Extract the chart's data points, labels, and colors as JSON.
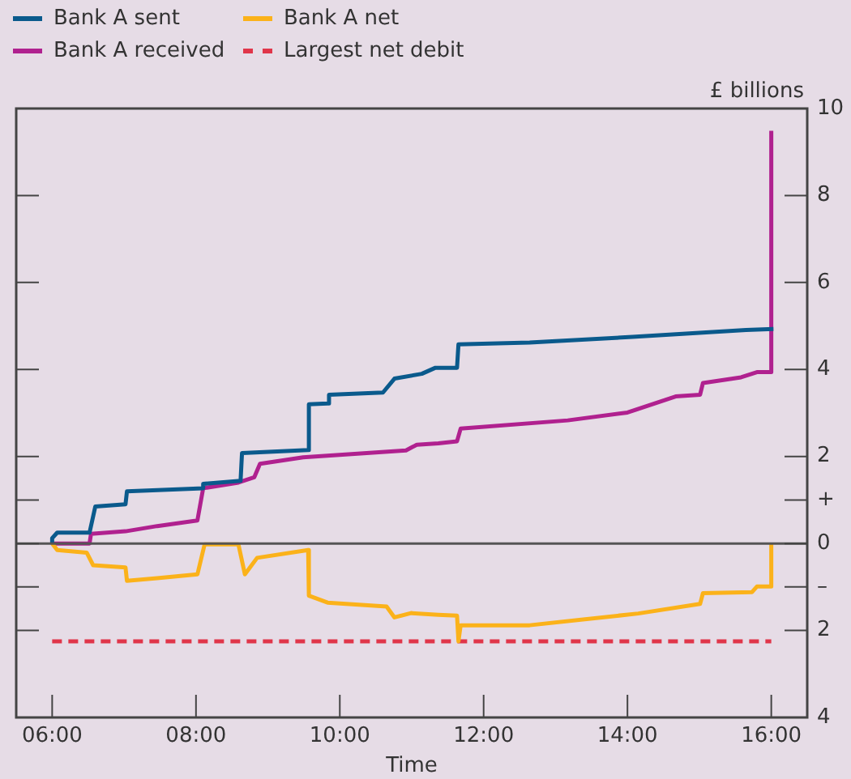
{
  "chart_data": {
    "type": "line",
    "xlabel": "Time",
    "ylabel": "£ billions",
    "legend": "top left",
    "marker": "none",
    "xlim": [
      5.5,
      16.5
    ],
    "xticks": [
      {
        "value": 6,
        "label": "06:00"
      },
      {
        "value": 8,
        "label": "08:00"
      },
      {
        "value": 10,
        "label": "10:00"
      },
      {
        "value": 12,
        "label": "12:00"
      },
      {
        "value": 14,
        "label": "14:00"
      },
      {
        "value": 16,
        "label": "16:00"
      }
    ],
    "ylim": [
      -4,
      10
    ],
    "yticks": [
      {
        "value": -4,
        "label": "4"
      },
      {
        "value": -2,
        "label": "2"
      },
      {
        "value": -1,
        "label": "–"
      },
      0,
      {
        "value": 1,
        "label": "+"
      },
      2,
      4,
      6,
      8,
      10
    ],
    "ref_lines": [
      {
        "axis": "y",
        "value": 0,
        "color": "#555555"
      }
    ],
    "series": [
      {
        "name": "Bank A sent",
        "color": "#0a5a8c",
        "x": [
          6.0,
          6.0,
          6.07,
          6.52,
          6.6,
          7.02,
          7.04,
          8.1,
          8.1,
          8.62,
          8.64,
          9.56,
          9.57,
          9.83,
          9.85,
          10.6,
          10.76,
          11.14,
          11.33,
          11.63,
          11.65,
          12.64,
          14.07,
          15.65,
          16.03
        ],
        "values": [
          0.0,
          0.12,
          0.25,
          0.25,
          0.85,
          0.9,
          1.2,
          1.27,
          1.37,
          1.44,
          2.08,
          2.15,
          3.2,
          3.22,
          3.42,
          3.47,
          3.79,
          3.9,
          4.04,
          4.04,
          4.58,
          4.62,
          4.75,
          4.91,
          4.93
        ]
      },
      {
        "name": "Bank A net",
        "color": "#fbb21a",
        "x": [
          6.0,
          6.07,
          6.48,
          6.57,
          7.02,
          7.04,
          7.46,
          8.02,
          8.12,
          8.59,
          8.68,
          8.85,
          9.56,
          9.57,
          9.83,
          10.65,
          10.76,
          10.99,
          11.37,
          11.63,
          11.65,
          11.68,
          12.64,
          14.15,
          15.01,
          15.05,
          15.73,
          15.8,
          16.0,
          16.0
        ],
        "values": [
          0.0,
          -0.15,
          -0.21,
          -0.5,
          -0.55,
          -0.86,
          -0.8,
          -0.71,
          -0.02,
          -0.02,
          -0.71,
          -0.33,
          -0.15,
          -1.2,
          -1.36,
          -1.45,
          -1.7,
          -1.6,
          -1.64,
          -1.66,
          -2.25,
          -1.88,
          -1.88,
          -1.61,
          -1.39,
          -1.14,
          -1.12,
          -0.99,
          -0.99,
          0.0
        ]
      },
      {
        "name": "Bank A received",
        "color": "#b0218f",
        "x": [
          6.0,
          6.52,
          6.54,
          7.02,
          7.46,
          8.02,
          8.1,
          8.59,
          8.81,
          8.89,
          9.49,
          10.92,
          11.07,
          11.37,
          11.63,
          11.68,
          13.17,
          14.0,
          14.67,
          15.01,
          15.05,
          15.58,
          15.8,
          15.99,
          16.0
        ],
        "values": [
          0.0,
          0.0,
          0.22,
          0.28,
          0.4,
          0.53,
          1.27,
          1.4,
          1.52,
          1.83,
          1.98,
          2.14,
          2.27,
          2.3,
          2.35,
          2.64,
          2.83,
          3.01,
          3.38,
          3.42,
          3.69,
          3.82,
          3.94,
          3.94,
          9.49
        ]
      },
      {
        "name": "Largest net debit",
        "color": "#e0364a",
        "line_style": "dashed",
        "x": [
          6.0,
          16.0
        ],
        "values": [
          -2.25,
          -2.25
        ]
      }
    ]
  }
}
